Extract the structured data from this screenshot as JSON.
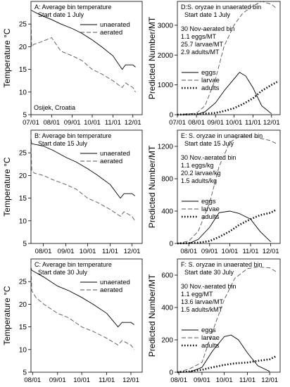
{
  "figure": {
    "ylabel_left": "Temperature °C",
    "ylabel_right": "Predicted Number/MT",
    "footnote": "Osijek, Croatia"
  },
  "chart_data": [
    {
      "id": "A",
      "type": "line",
      "title": "A: Average bin temperature",
      "subtitle": "Start date 1 July",
      "ylabel": "Temperature °C",
      "ylim": [
        5,
        30
      ],
      "yticks": [
        5,
        10,
        15,
        20,
        25
      ],
      "xlim": [
        "07/01",
        "12/15"
      ],
      "xticks": [
        "07/01",
        "08/01",
        "09/01",
        "10/01",
        "11/01",
        "12/01"
      ],
      "legend": "top-right",
      "series": [
        {
          "name": "unaerated",
          "style": "solid",
          "x": [
            "07/01",
            "07/02",
            "07/15",
            "08/01",
            "08/15",
            "09/01",
            "09/15",
            "10/01",
            "10/15",
            "11/01",
            "11/15",
            "11/20",
            "12/01",
            "12/05"
          ],
          "y": [
            28,
            28,
            27,
            26,
            25,
            24,
            23,
            21.5,
            20,
            18,
            15,
            16,
            16,
            15.5
          ]
        },
        {
          "name": "aerated",
          "style": "dashed",
          "x": [
            "07/01",
            "07/02",
            "07/05",
            "07/15",
            "08/01",
            "08/15",
            "09/01",
            "09/15",
            "10/01",
            "10/15",
            "11/01",
            "11/15",
            "11/20",
            "12/01",
            "12/05"
          ],
          "y": [
            28,
            20,
            20.5,
            21,
            22,
            19,
            18,
            17,
            15,
            14,
            12.5,
            11,
            12,
            11,
            10
          ]
        }
      ]
    },
    {
      "id": "D",
      "type": "line",
      "title": "D:S. oryzae in unaerated bin",
      "subtitle": "Start date 1 July",
      "annotation": [
        "30 Nov-aerated bin",
        "1.1 eggs/MT",
        "25.7 larvae/MT",
        "2.9 adults/MT"
      ],
      "ylabel": "Predicted Number/MT",
      "ylim": [
        0,
        3800
      ],
      "yticks": [
        0,
        1000,
        2000,
        3000
      ],
      "xlim": [
        "07/01",
        "12/15"
      ],
      "xticks": [
        "07/01",
        "08/01",
        "09/01",
        "10/01",
        "11/01",
        "12/01"
      ],
      "legend": "center-left",
      "series": [
        {
          "name": "eggs",
          "style": "solid",
          "x": [
            "07/01",
            "08/01",
            "08/15",
            "09/01",
            "09/15",
            "10/01",
            "10/10",
            "10/20",
            "11/01",
            "11/15",
            "12/01"
          ],
          "y": [
            0,
            0,
            100,
            400,
            800,
            1200,
            1420,
            1300,
            900,
            300,
            30
          ]
        },
        {
          "name": "larvae",
          "style": "dashed",
          "x": [
            "07/01",
            "08/01",
            "08/15",
            "09/01",
            "09/15",
            "10/01",
            "10/15",
            "11/01",
            "11/15",
            "12/01",
            "12/10"
          ],
          "y": [
            0,
            50,
            300,
            1200,
            2300,
            3000,
            3400,
            3650,
            3800,
            3700,
            3550
          ]
        },
        {
          "name": "adults",
          "style": "dotted",
          "x": [
            "07/01",
            "08/01",
            "09/01",
            "09/15",
            "10/01",
            "10/15",
            "11/01",
            "11/15",
            "12/01",
            "12/10"
          ],
          "y": [
            0,
            20,
            60,
            120,
            220,
            350,
            550,
            800,
            1000,
            1100
          ]
        }
      ]
    },
    {
      "id": "B",
      "type": "line",
      "title": "B: Average bin temperature",
      "subtitle": "Start date 15 July",
      "ylabel": "Temperature °C",
      "ylim": [
        5,
        30
      ],
      "yticks": [
        5,
        10,
        15,
        20,
        25
      ],
      "xlim": [
        "07/15",
        "12/15"
      ],
      "xticks": [
        "08/01",
        "09/01",
        "10/01",
        "11/01",
        "12/01"
      ],
      "legend": "top-right",
      "series": [
        {
          "name": "unaerated",
          "style": "solid",
          "x": [
            "07/15",
            "07/16",
            "08/01",
            "08/15",
            "09/01",
            "09/15",
            "10/01",
            "10/15",
            "11/01",
            "11/15",
            "11/20",
            "12/01",
            "12/05"
          ],
          "y": [
            28,
            27,
            26.5,
            25.5,
            24,
            23,
            21.5,
            20,
            18,
            15,
            16,
            16,
            15.5
          ]
        },
        {
          "name": "aerated",
          "style": "dashed",
          "x": [
            "07/15",
            "07/16",
            "07/20",
            "08/01",
            "08/15",
            "09/01",
            "09/15",
            "10/01",
            "10/15",
            "11/01",
            "11/15",
            "11/20",
            "12/01",
            "12/05"
          ],
          "y": [
            29,
            21,
            20.5,
            20,
            19,
            18,
            17,
            15,
            14,
            12.5,
            11,
            12,
            11,
            10
          ]
        }
      ]
    },
    {
      "id": "E",
      "type": "line",
      "title": "E: S. oryzae in unaerated bin",
      "subtitle": "Start date 15 July",
      "annotation": [
        "30 Nov.-aerated bin",
        "1.1 eggs/kg",
        "20.2 larvae/kg",
        "1.5 adults/kg"
      ],
      "ylabel": "Predicted Number/MT",
      "ylim": [
        0,
        1400
      ],
      "yticks": [
        0,
        400,
        800,
        1200
      ],
      "xlim": [
        "07/15",
        "12/15"
      ],
      "xticks": [
        "08/01",
        "09/01",
        "10/01",
        "11/01",
        "12/01"
      ],
      "legend": "center-left",
      "series": [
        {
          "name": "eggs",
          "style": "solid",
          "x": [
            "07/15",
            "08/01",
            "08/15",
            "09/01",
            "09/15",
            "10/01",
            "10/15",
            "11/01",
            "11/15",
            "12/01"
          ],
          "y": [
            0,
            0,
            50,
            200,
            380,
            400,
            370,
            300,
            150,
            20
          ]
        },
        {
          "name": "larvae",
          "style": "dashed",
          "x": [
            "07/15",
            "08/01",
            "08/15",
            "09/01",
            "09/15",
            "10/01",
            "10/15",
            "11/01",
            "11/15",
            "12/01",
            "12/10"
          ],
          "y": [
            0,
            30,
            150,
            500,
            950,
            1250,
            1320,
            1330,
            1300,
            1270,
            1230
          ]
        },
        {
          "name": "adults",
          "style": "dotted",
          "x": [
            "07/15",
            "08/15",
            "09/01",
            "09/15",
            "10/01",
            "10/15",
            "11/01",
            "11/15",
            "12/01",
            "12/10"
          ],
          "y": [
            0,
            10,
            30,
            80,
            150,
            230,
            300,
            350,
            380,
            420
          ]
        }
      ]
    },
    {
      "id": "C",
      "type": "line",
      "title": "C: Average bin temperature",
      "subtitle": "Start date 30 July",
      "ylabel": "Temperature °C",
      "ylim": [
        5,
        30
      ],
      "yticks": [
        5,
        10,
        15,
        20,
        25
      ],
      "xlim": [
        "07/30",
        "12/15"
      ],
      "xticks": [
        "08/01",
        "09/01",
        "10/01",
        "11/01",
        "12/01"
      ],
      "legend": "top-right",
      "series": [
        {
          "name": "unaerated",
          "style": "solid",
          "x": [
            "07/30",
            "07/31",
            "08/15",
            "09/01",
            "09/15",
            "10/01",
            "10/15",
            "11/01",
            "11/15",
            "11/20",
            "12/01",
            "12/05"
          ],
          "y": [
            28,
            27.5,
            26,
            24,
            23,
            21.5,
            20,
            18,
            15,
            16,
            16,
            15.5
          ]
        },
        {
          "name": "aerated",
          "style": "dashed",
          "x": [
            "07/30",
            "07/31",
            "08/05",
            "08/15",
            "09/01",
            "09/15",
            "10/01",
            "10/15",
            "11/01",
            "11/15",
            "11/20",
            "12/01",
            "12/05"
          ],
          "y": [
            29,
            23,
            21.5,
            20,
            18,
            17,
            15,
            14,
            12.5,
            11,
            12,
            11,
            10
          ]
        }
      ]
    },
    {
      "id": "F",
      "type": "line",
      "title": "F: S. oryzae in unaerated bin",
      "subtitle": "Start date 30 July",
      "annotation": [
        "30 Nov.-aerated bin",
        "1.1 egg/MT",
        "13.6 larvae/MT",
        "1.5 adults/kMT"
      ],
      "ylabel": "Predicted Number/MT",
      "ylim": [
        0,
        700
      ],
      "yticks": [
        0,
        200,
        400,
        600
      ],
      "xlim": [
        "07/30",
        "12/15"
      ],
      "xticks": [
        "08/01",
        "09/01",
        "10/01",
        "11/01",
        "12/01"
      ],
      "legend": "center-left",
      "series": [
        {
          "name": "eggs",
          "style": "solid",
          "x": [
            "07/30",
            "08/15",
            "09/01",
            "09/15",
            "10/01",
            "10/10",
            "10/20",
            "11/01",
            "11/15",
            "12/01"
          ],
          "y": [
            0,
            0,
            30,
            130,
            220,
            230,
            200,
            120,
            40,
            5
          ]
        },
        {
          "name": "larvae",
          "style": "dashed",
          "x": [
            "07/30",
            "08/15",
            "09/01",
            "09/15",
            "10/01",
            "10/15",
            "11/01",
            "11/15",
            "12/01",
            "12/10"
          ],
          "y": [
            0,
            20,
            60,
            250,
            450,
            580,
            640,
            650,
            645,
            620
          ]
        },
        {
          "name": "adults",
          "style": "dotted",
          "x": [
            "07/30",
            "08/15",
            "09/01",
            "09/15",
            "10/01",
            "10/15",
            "11/01",
            "11/15",
            "12/01",
            "12/10"
          ],
          "y": [
            0,
            5,
            15,
            30,
            45,
            55,
            60,
            70,
            80,
            100
          ]
        }
      ]
    }
  ]
}
